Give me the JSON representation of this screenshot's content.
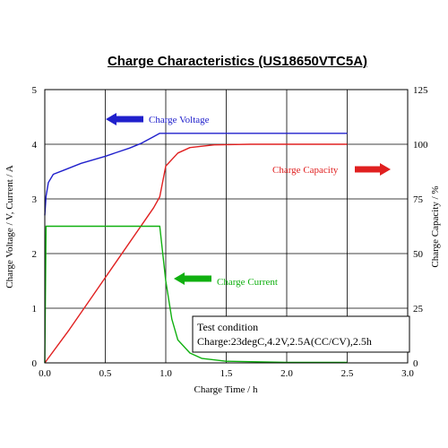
{
  "chart_data": {
    "type": "line",
    "title": "Charge Characteristics (US18650VTC5A)",
    "xlabel": "Charge Time / h",
    "ylabel_left": "Charge Voltage / V, Current / A",
    "ylabel_right": "Charge Capacity / %",
    "xlim": [
      0,
      3.0
    ],
    "ylim_left": [
      0,
      5
    ],
    "ylim_right": [
      0,
      125
    ],
    "x_ticks": [
      "0.0",
      "0.5",
      "1.0",
      "1.5",
      "2.0",
      "2.5",
      "3.0"
    ],
    "y_ticks_left": [
      "0",
      "1",
      "2",
      "3",
      "4",
      "5"
    ],
    "y_ticks_right": [
      "0",
      "25",
      "50",
      "75",
      "100",
      "125"
    ],
    "grid": true,
    "series": [
      {
        "name": "Charge Voltage",
        "color": "#2020cc",
        "axis": "left",
        "points": [
          [
            0,
            2.7
          ],
          [
            0.01,
            3.05
          ],
          [
            0.03,
            3.3
          ],
          [
            0.07,
            3.45
          ],
          [
            0.15,
            3.52
          ],
          [
            0.3,
            3.65
          ],
          [
            0.5,
            3.78
          ],
          [
            0.7,
            3.93
          ],
          [
            0.8,
            4.02
          ],
          [
            0.9,
            4.14
          ],
          [
            0.95,
            4.2
          ],
          [
            1.2,
            4.2
          ],
          [
            1.5,
            4.2
          ],
          [
            2.0,
            4.2
          ],
          [
            2.5,
            4.2
          ]
        ]
      },
      {
        "name": "Charge Capacity",
        "color": "#e02020",
        "axis": "right",
        "points": [
          [
            0,
            0
          ],
          [
            0.2,
            15
          ],
          [
            0.4,
            31
          ],
          [
            0.6,
            47
          ],
          [
            0.8,
            63
          ],
          [
            0.9,
            71
          ],
          [
            0.95,
            76
          ],
          [
            1.0,
            90
          ],
          [
            1.1,
            96
          ],
          [
            1.2,
            98.5
          ],
          [
            1.4,
            99.7
          ],
          [
            1.7,
            100
          ],
          [
            2.5,
            100
          ]
        ]
      },
      {
        "name": "Charge Current",
        "color": "#10b010",
        "axis": "left",
        "points": [
          [
            0,
            0
          ],
          [
            0.01,
            2.5
          ],
          [
            0.95,
            2.5
          ],
          [
            1.0,
            1.5
          ],
          [
            1.05,
            0.8
          ],
          [
            1.1,
            0.42
          ],
          [
            1.2,
            0.18
          ],
          [
            1.3,
            0.08
          ],
          [
            1.5,
            0.03
          ],
          [
            2.0,
            0.01
          ],
          [
            2.5,
            0.01
          ]
        ]
      }
    ],
    "annotations": {
      "voltage_label": "Charge Voltage",
      "capacity_label": "Charge Capacity",
      "current_label": "Charge Current"
    },
    "test_condition": {
      "line1": "Test condition",
      "line2": "Charge:23degC,4.2V,2.5A(CC/CV),2.5h"
    }
  }
}
